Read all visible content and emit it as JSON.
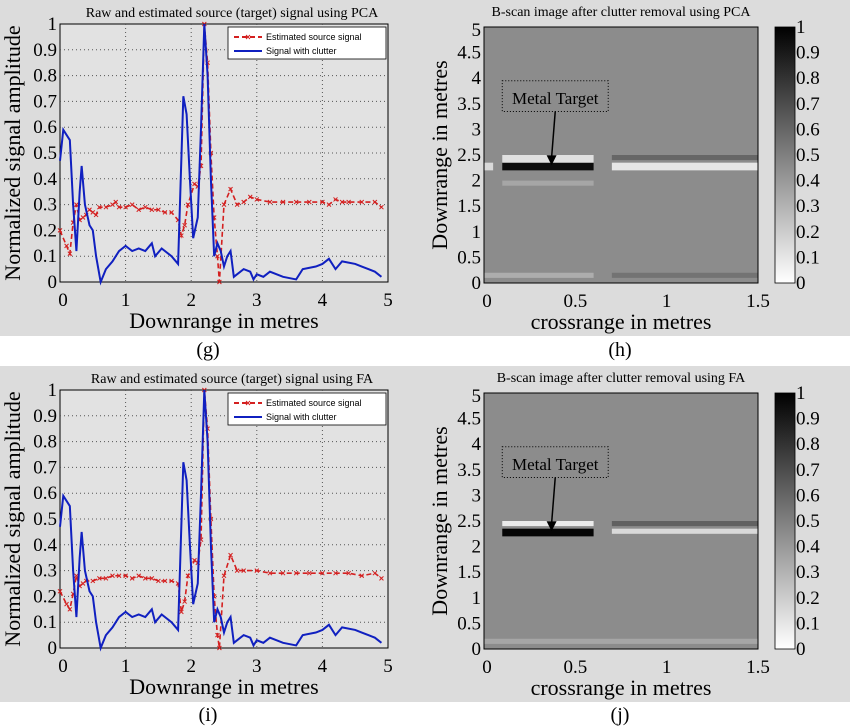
{
  "captions": [
    "(g)",
    "(h)",
    "(i)",
    "(j)"
  ],
  "colors": {
    "estimated": "#d42020",
    "clutter": "#1020c0",
    "panel_bg": "#dcdcdc"
  },
  "chart_data": [
    {
      "type": "line",
      "title": "Raw and estimated source (target) signal using PCA",
      "xlabel": "Downrange in metres",
      "ylabel": "Normalized signal amplitude",
      "xlim": [
        0,
        5
      ],
      "ylim": [
        0,
        1
      ],
      "xticks": [
        "0",
        "1",
        "2",
        "3",
        "4",
        "5"
      ],
      "yticks": [
        "0",
        "0.1",
        "0.2",
        "0.3",
        "0.4",
        "0.5",
        "0.6",
        "0.7",
        "0.8",
        "0.9",
        "1"
      ],
      "grid": true,
      "legend": "top-right",
      "series": [
        {
          "name": "Estimated source signal",
          "style": "dashed-x",
          "color": "#d42020",
          "x": [
            0,
            0.1,
            0.15,
            0.2,
            0.25,
            0.3,
            0.35,
            0.4,
            0.45,
            0.5,
            0.55,
            0.6,
            0.7,
            0.8,
            0.85,
            0.9,
            1.0,
            1.1,
            1.2,
            1.3,
            1.4,
            1.5,
            1.6,
            1.7,
            1.8,
            1.85,
            1.9,
            1.95,
            2.05,
            2.1,
            2.15,
            2.2,
            2.25,
            2.3,
            2.35,
            2.4,
            2.43,
            2.5,
            2.6,
            2.7,
            2.8,
            2.9,
            3.0,
            3.2,
            3.4,
            3.6,
            3.8,
            4.0,
            4.1,
            4.2,
            4.3,
            4.4,
            4.6,
            4.8,
            4.9
          ],
          "y": [
            0.2,
            0.14,
            0.11,
            0.23,
            0.3,
            0.24,
            0.25,
            0.26,
            0.28,
            0.27,
            0.26,
            0.29,
            0.29,
            0.3,
            0.31,
            0.29,
            0.29,
            0.3,
            0.28,
            0.29,
            0.28,
            0.28,
            0.27,
            0.27,
            0.24,
            0.18,
            0.22,
            0.3,
            0.38,
            0.37,
            0.45,
            1.0,
            0.85,
            0.5,
            0.25,
            0.1,
            0.0,
            0.3,
            0.36,
            0.3,
            0.31,
            0.33,
            0.32,
            0.31,
            0.31,
            0.31,
            0.31,
            0.31,
            0.3,
            0.32,
            0.31,
            0.31,
            0.31,
            0.31,
            0.29
          ]
        },
        {
          "name": "Signal with clutter",
          "style": "solid",
          "color": "#1020c0",
          "x": [
            0,
            0.05,
            0.1,
            0.15,
            0.2,
            0.25,
            0.3,
            0.33,
            0.38,
            0.45,
            0.5,
            0.55,
            0.62,
            0.7,
            0.8,
            0.9,
            1.0,
            1.1,
            1.2,
            1.3,
            1.4,
            1.45,
            1.55,
            1.7,
            1.8,
            1.88,
            1.93,
            1.98,
            2.03,
            2.1,
            2.15,
            2.2,
            2.25,
            2.3,
            2.35,
            2.4,
            2.45,
            2.5,
            2.55,
            2.6,
            2.65,
            2.8,
            2.9,
            2.95,
            3.0,
            3.1,
            3.2,
            3.4,
            3.6,
            3.7,
            3.9,
            4.0,
            4.1,
            4.2,
            4.3,
            4.5,
            4.6,
            4.7,
            4.8,
            4.9
          ],
          "y": [
            0.47,
            0.59,
            0.57,
            0.55,
            0.3,
            0.12,
            0.35,
            0.45,
            0.3,
            0.22,
            0.2,
            0.1,
            0.0,
            0.05,
            0.08,
            0.12,
            0.14,
            0.12,
            0.13,
            0.12,
            0.15,
            0.1,
            0.13,
            0.1,
            0.07,
            0.72,
            0.65,
            0.4,
            0.17,
            0.25,
            0.6,
            1.0,
            0.8,
            0.4,
            0.1,
            0.15,
            0.12,
            0.06,
            0.1,
            0.12,
            0.02,
            0.05,
            0.04,
            0.01,
            0.03,
            0.02,
            0.04,
            0.02,
            0.01,
            0.05,
            0.06,
            0.07,
            0.09,
            0.05,
            0.08,
            0.07,
            0.06,
            0.05,
            0.04,
            0.02
          ]
        }
      ]
    },
    {
      "type": "heatmap",
      "title": "B-scan image after clutter removal using PCA",
      "xlabel": "crossrange in metres",
      "ylabel": "Downrange in metres",
      "xlim": [
        0,
        1.5
      ],
      "ylim": [
        0,
        5
      ],
      "xticks": [
        "0",
        "0.5",
        "1",
        "1.5"
      ],
      "yticks": [
        "0",
        "0.5",
        "1",
        "1.5",
        "2",
        "2.5",
        "3",
        "3.5",
        "4",
        "4.5",
        "5"
      ],
      "colorbar": {
        "range": [
          0,
          1
        ],
        "ticks": [
          "0",
          "0.1",
          "0.2",
          "0.3",
          "0.4",
          "0.5",
          "0.6",
          "0.7",
          "0.8",
          "0.9",
          "1"
        ],
        "colormap": "gray-reversed"
      },
      "background_value": 0.45,
      "bands": [
        {
          "x": [
            0.1,
            0.6
          ],
          "y": [
            2.2,
            2.35
          ],
          "value": 0.95
        },
        {
          "x": [
            0.1,
            0.6
          ],
          "y": [
            2.35,
            2.5
          ],
          "value": 0.12
        },
        {
          "x": [
            0.0,
            0.05
          ],
          "y": [
            2.2,
            2.35
          ],
          "value": 0.15
        },
        {
          "x": [
            0.7,
            1.5
          ],
          "y": [
            2.2,
            2.35
          ],
          "value": 0.1
        },
        {
          "x": [
            0.7,
            1.5
          ],
          "y": [
            2.4,
            2.5
          ],
          "value": 0.6
        },
        {
          "x": [
            0.1,
            0.6
          ],
          "y": [
            1.9,
            2.0
          ],
          "value": 0.35
        },
        {
          "x": [
            0.0,
            0.6
          ],
          "y": [
            0.1,
            0.2
          ],
          "value": 0.32
        },
        {
          "x": [
            0.7,
            1.5
          ],
          "y": [
            0.1,
            0.2
          ],
          "value": 0.55
        }
      ],
      "annotation": "Metal Target"
    },
    {
      "type": "line",
      "title": "Raw and estimated source (target) signal using FA",
      "xlabel": "Downrange in metres",
      "ylabel": "Normalized signal amplitude",
      "xlim": [
        0,
        5
      ],
      "ylim": [
        0,
        1
      ],
      "xticks": [
        "0",
        "1",
        "2",
        "3",
        "4",
        "5"
      ],
      "yticks": [
        "0",
        "0.1",
        "0.2",
        "0.3",
        "0.4",
        "0.5",
        "0.6",
        "0.7",
        "0.8",
        "0.9",
        "1"
      ],
      "grid": true,
      "legend": "top-right",
      "series": [
        {
          "name": "Estimated source signal",
          "style": "dashed-x",
          "color": "#d42020",
          "x": [
            0,
            0.1,
            0.15,
            0.2,
            0.25,
            0.3,
            0.35,
            0.4,
            0.5,
            0.6,
            0.7,
            0.8,
            0.9,
            1.0,
            1.1,
            1.2,
            1.3,
            1.4,
            1.5,
            1.6,
            1.7,
            1.8,
            1.85,
            1.9,
            1.95,
            2.05,
            2.1,
            2.15,
            2.2,
            2.25,
            2.3,
            2.35,
            2.4,
            2.43,
            2.5,
            2.6,
            2.7,
            2.8,
            3.0,
            3.2,
            3.4,
            3.6,
            3.8,
            4.0,
            4.2,
            4.4,
            4.6,
            4.8,
            4.9
          ],
          "y": [
            0.22,
            0.17,
            0.15,
            0.21,
            0.28,
            0.24,
            0.25,
            0.26,
            0.26,
            0.27,
            0.27,
            0.28,
            0.28,
            0.28,
            0.27,
            0.28,
            0.27,
            0.27,
            0.26,
            0.26,
            0.26,
            0.25,
            0.14,
            0.18,
            0.28,
            0.34,
            0.33,
            0.42,
            1.0,
            0.85,
            0.5,
            0.2,
            0.05,
            0.0,
            0.28,
            0.36,
            0.3,
            0.3,
            0.3,
            0.29,
            0.29,
            0.29,
            0.29,
            0.29,
            0.29,
            0.29,
            0.28,
            0.29,
            0.27
          ]
        },
        {
          "name": "Signal with clutter",
          "style": "solid",
          "color": "#1020c0",
          "x": [
            0,
            0.05,
            0.1,
            0.15,
            0.2,
            0.25,
            0.3,
            0.33,
            0.38,
            0.45,
            0.5,
            0.55,
            0.62,
            0.7,
            0.8,
            0.9,
            1.0,
            1.1,
            1.2,
            1.3,
            1.4,
            1.45,
            1.55,
            1.7,
            1.8,
            1.88,
            1.93,
            1.98,
            2.03,
            2.1,
            2.15,
            2.2,
            2.25,
            2.3,
            2.35,
            2.4,
            2.45,
            2.5,
            2.55,
            2.6,
            2.65,
            2.8,
            2.9,
            2.95,
            3.0,
            3.1,
            3.2,
            3.4,
            3.6,
            3.7,
            3.9,
            4.0,
            4.1,
            4.2,
            4.3,
            4.5,
            4.6,
            4.7,
            4.8,
            4.9
          ],
          "y": [
            0.47,
            0.59,
            0.57,
            0.55,
            0.3,
            0.12,
            0.35,
            0.45,
            0.3,
            0.22,
            0.2,
            0.1,
            0.0,
            0.05,
            0.08,
            0.12,
            0.14,
            0.12,
            0.13,
            0.12,
            0.15,
            0.1,
            0.13,
            0.1,
            0.07,
            0.72,
            0.65,
            0.4,
            0.17,
            0.25,
            0.6,
            1.0,
            0.8,
            0.4,
            0.1,
            0.15,
            0.12,
            0.06,
            0.1,
            0.12,
            0.02,
            0.05,
            0.04,
            0.01,
            0.03,
            0.02,
            0.04,
            0.02,
            0.01,
            0.05,
            0.06,
            0.07,
            0.09,
            0.05,
            0.08,
            0.07,
            0.06,
            0.05,
            0.04,
            0.02
          ]
        }
      ]
    },
    {
      "type": "heatmap",
      "title": "B-scan image after clutter removal using FA",
      "xlabel": "crossrange in metres",
      "ylabel": "Downrange in metres",
      "xlim": [
        0,
        1.5
      ],
      "ylim": [
        0,
        5
      ],
      "xticks": [
        "0",
        "0.5",
        "1",
        "1.5"
      ],
      "yticks": [
        "0",
        "0.5",
        "1",
        "1.5",
        "2",
        "2.5",
        "3",
        "3.5",
        "4",
        "4.5",
        "5"
      ],
      "colorbar": {
        "range": [
          0,
          1
        ],
        "ticks": [
          "0",
          "0.1",
          "0.2",
          "0.3",
          "0.4",
          "0.5",
          "0.6",
          "0.7",
          "0.8",
          "0.9",
          "1"
        ],
        "colormap": "gray-reversed"
      },
      "background_value": 0.45,
      "bands": [
        {
          "x": [
            0.1,
            0.6
          ],
          "y": [
            2.2,
            2.35
          ],
          "value": 0.98
        },
        {
          "x": [
            0.1,
            0.6
          ],
          "y": [
            2.4,
            2.5
          ],
          "value": 0.08
        },
        {
          "x": [
            0.7,
            1.5
          ],
          "y": [
            2.25,
            2.35
          ],
          "value": 0.15
        },
        {
          "x": [
            0.7,
            1.5
          ],
          "y": [
            2.4,
            2.5
          ],
          "value": 0.62
        },
        {
          "x": [
            0.0,
            1.5
          ],
          "y": [
            0.1,
            0.2
          ],
          "value": 0.35
        }
      ],
      "annotation": "Metal Target"
    }
  ]
}
